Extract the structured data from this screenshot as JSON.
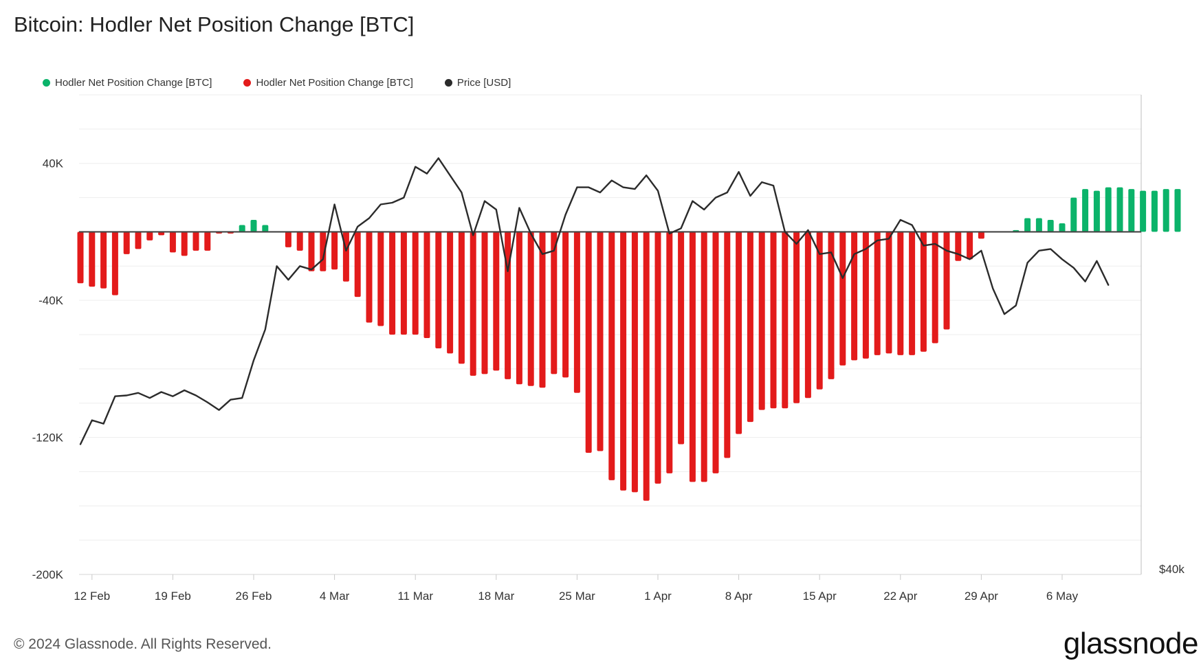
{
  "title": "Bitcoin: Hodler Net Position Change [BTC]",
  "legend": [
    {
      "label": "Hodler Net Position Change [BTC]",
      "color": "#0bb36a"
    },
    {
      "label": "Hodler Net Position Change [BTC]",
      "color": "#e31b1b"
    },
    {
      "label": "Price [USD]",
      "color": "#2b2b2b"
    }
  ],
  "footer": "© 2024 Glassnode. All Rights Reserved.",
  "brand": "glassnode",
  "chart_data": {
    "type": "bar",
    "title": "Bitcoin: Hodler Net Position Change [BTC]",
    "ylim": [
      -200000,
      80000
    ],
    "yticks": [
      {
        "value": 40000,
        "label": "40K"
      },
      {
        "value": -40000,
        "label": "-40K"
      },
      {
        "value": -120000,
        "label": "-120K"
      },
      {
        "value": -200000,
        "label": "-200K"
      }
    ],
    "right_axis_label": "$40k",
    "xticks": [
      {
        "index": 1,
        "label": "12 Feb"
      },
      {
        "index": 8,
        "label": "19 Feb"
      },
      {
        "index": 15,
        "label": "26 Feb"
      },
      {
        "index": 22,
        "label": "4 Mar"
      },
      {
        "index": 29,
        "label": "11 Mar"
      },
      {
        "index": 36,
        "label": "18 Mar"
      },
      {
        "index": 43,
        "label": "25 Mar"
      },
      {
        "index": 50,
        "label": "1 Apr"
      },
      {
        "index": 57,
        "label": "8 Apr"
      },
      {
        "index": 64,
        "label": "15 Apr"
      },
      {
        "index": 71,
        "label": "22 Apr"
      },
      {
        "index": 78,
        "label": "29 Apr"
      },
      {
        "index": 85,
        "label": "6 May"
      }
    ],
    "positive_color": "#0bb36a",
    "negative_color": "#e31b1b",
    "price_color": "#2b2b2b",
    "hodler_net_position_change": [
      -30000,
      -32000,
      -33000,
      -37000,
      -13000,
      -10000,
      -5000,
      -2000,
      -12000,
      -14000,
      -11000,
      -11000,
      -1000,
      -1000,
      4000,
      7000,
      4000,
      0,
      -9000,
      -11000,
      -23000,
      -23000,
      -22000,
      -29000,
      -38000,
      -53000,
      -55000,
      -60000,
      -60000,
      -60000,
      -62000,
      -68000,
      -71000,
      -77000,
      -84000,
      -83000,
      -81000,
      -86000,
      -89000,
      -90000,
      -91000,
      -83000,
      -85000,
      -94000,
      -129000,
      -128000,
      -145000,
      -151000,
      -152000,
      -157000,
      -147000,
      -141000,
      -124000,
      -146000,
      -146000,
      -141000,
      -132000,
      -118000,
      -111000,
      -104000,
      -103000,
      -103000,
      -100000,
      -97000,
      -92000,
      -86000,
      -78000,
      -75000,
      -74000,
      -72000,
      -71000,
      -72000,
      -72000,
      -70000,
      -65000,
      -57000,
      -17000,
      -16000,
      -4000,
      0,
      0,
      1000,
      8000,
      8000,
      7000,
      5000,
      20000,
      25000,
      24000,
      26000,
      26000,
      25000,
      24000,
      24000,
      25000,
      25000
    ],
    "price_path": [
      [
        0,
        -124000
      ],
      [
        1,
        -110000
      ],
      [
        2,
        -112000
      ],
      [
        3,
        -96000
      ],
      [
        4,
        -95500
      ],
      [
        5,
        -94000
      ],
      [
        6,
        -97000
      ],
      [
        7,
        -93500
      ],
      [
        8,
        -96000
      ],
      [
        9,
        -92500
      ],
      [
        10,
        -95500
      ],
      [
        11,
        -99500
      ],
      [
        12,
        -104000
      ],
      [
        13,
        -98000
      ],
      [
        14,
        -97000
      ],
      [
        15,
        -75000
      ],
      [
        16,
        -57000
      ],
      [
        17,
        -20000
      ],
      [
        18,
        -28000
      ],
      [
        19,
        -20000
      ],
      [
        20,
        -22000
      ],
      [
        21,
        -16000
      ],
      [
        22,
        16000
      ],
      [
        23,
        -11000
      ],
      [
        24,
        3000
      ],
      [
        25,
        8000
      ],
      [
        26,
        16000
      ],
      [
        27,
        17000
      ],
      [
        28,
        20000
      ],
      [
        29,
        38000
      ],
      [
        30,
        34000
      ],
      [
        31,
        43000
      ],
      [
        32,
        33000
      ],
      [
        33,
        23000
      ],
      [
        34,
        -2000
      ],
      [
        35,
        18000
      ],
      [
        36,
        13000
      ],
      [
        37,
        -23000
      ],
      [
        38,
        14000
      ],
      [
        39,
        -1000
      ],
      [
        40,
        -13000
      ],
      [
        41,
        -11000
      ],
      [
        42,
        10000
      ],
      [
        43,
        26000
      ],
      [
        44,
        26000
      ],
      [
        45,
        23000
      ],
      [
        46,
        30000
      ],
      [
        47,
        26000
      ],
      [
        48,
        25000
      ],
      [
        49,
        33000
      ],
      [
        50,
        24000
      ],
      [
        51,
        -1000
      ],
      [
        52,
        2000
      ],
      [
        53,
        18000
      ],
      [
        54,
        13000
      ],
      [
        55,
        20000
      ],
      [
        56,
        23000
      ],
      [
        57,
        35000
      ],
      [
        58,
        21000
      ],
      [
        59,
        29000
      ],
      [
        60,
        27000
      ],
      [
        61,
        0
      ],
      [
        62,
        -7000
      ],
      [
        63,
        1000
      ],
      [
        64,
        -13000
      ],
      [
        65,
        -12000
      ],
      [
        66,
        -27000
      ],
      [
        67,
        -13000
      ],
      [
        68,
        -10000
      ],
      [
        69,
        -5000
      ],
      [
        70,
        -4000
      ],
      [
        71,
        7000
      ],
      [
        72,
        4000
      ],
      [
        73,
        -8000
      ],
      [
        74,
        -7000
      ],
      [
        75,
        -11000
      ],
      [
        76,
        -13000
      ],
      [
        77,
        -16000
      ],
      [
        78,
        -11000
      ],
      [
        79,
        -33000
      ],
      [
        80,
        -48000
      ],
      [
        81,
        -43000
      ],
      [
        82,
        -18000
      ],
      [
        83,
        -11000
      ],
      [
        84,
        -10000
      ],
      [
        85,
        -16000
      ],
      [
        86,
        -21000
      ],
      [
        87,
        -29000
      ],
      [
        88,
        -17000
      ],
      [
        89,
        -31000
      ]
    ]
  }
}
